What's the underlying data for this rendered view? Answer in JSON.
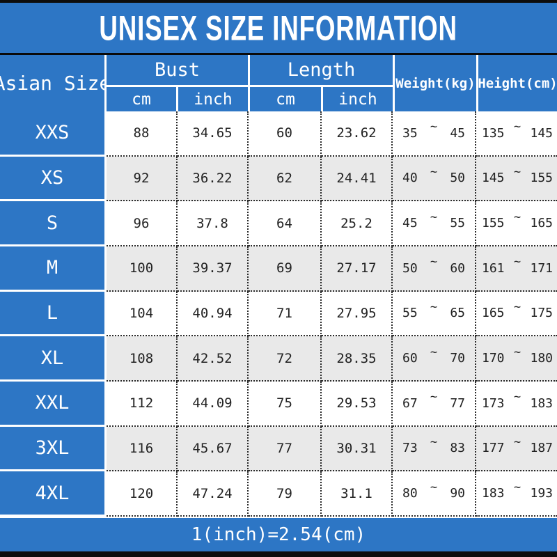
{
  "title": "UNISEX SIZE INFORMATION",
  "footer_note": "1(inch)=2.54(cm)",
  "tilde": "~",
  "colors": {
    "primary_blue": "#2d76c5",
    "alt_row_gray": "#e9e9e9",
    "cell_text": "#222222",
    "header_text": "#ffffff",
    "frame_bar_black": "#0d0d0d"
  },
  "table": {
    "headers": {
      "asian_size": "Asian Size",
      "bust": "Bust",
      "length": "Length",
      "cm": "cm",
      "inch": "inch",
      "weight": "Weight(kg)",
      "height": "Height(cm)"
    },
    "rows": [
      {
        "size": "XXS",
        "bust_cm": "88",
        "bust_inch": "34.65",
        "length_cm": "60",
        "length_inch": "23.62",
        "weight_min": "35",
        "weight_max": "45",
        "height_min": "135",
        "height_max": "145"
      },
      {
        "size": "XS",
        "bust_cm": "92",
        "bust_inch": "36.22",
        "length_cm": "62",
        "length_inch": "24.41",
        "weight_min": "40",
        "weight_max": "50",
        "height_min": "145",
        "height_max": "155"
      },
      {
        "size": "S",
        "bust_cm": "96",
        "bust_inch": "37.8",
        "length_cm": "64",
        "length_inch": "25.2",
        "weight_min": "45",
        "weight_max": "55",
        "height_min": "155",
        "height_max": "165"
      },
      {
        "size": "M",
        "bust_cm": "100",
        "bust_inch": "39.37",
        "length_cm": "69",
        "length_inch": "27.17",
        "weight_min": "50",
        "weight_max": "60",
        "height_min": "161",
        "height_max": "171"
      },
      {
        "size": "L",
        "bust_cm": "104",
        "bust_inch": "40.94",
        "length_cm": "71",
        "length_inch": "27.95",
        "weight_min": "55",
        "weight_max": "65",
        "height_min": "165",
        "height_max": "175"
      },
      {
        "size": "XL",
        "bust_cm": "108",
        "bust_inch": "42.52",
        "length_cm": "72",
        "length_inch": "28.35",
        "weight_min": "60",
        "weight_max": "70",
        "height_min": "170",
        "height_max": "180"
      },
      {
        "size": "XXL",
        "bust_cm": "112",
        "bust_inch": "44.09",
        "length_cm": "75",
        "length_inch": "29.53",
        "weight_min": "67",
        "weight_max": "77",
        "height_min": "173",
        "height_max": "183"
      },
      {
        "size": "3XL",
        "bust_cm": "116",
        "bust_inch": "45.67",
        "length_cm": "77",
        "length_inch": "30.31",
        "weight_min": "73",
        "weight_max": "83",
        "height_min": "177",
        "height_max": "187"
      },
      {
        "size": "4XL",
        "bust_cm": "120",
        "bust_inch": "47.24",
        "length_cm": "79",
        "length_inch": "31.1",
        "weight_min": "80",
        "weight_max": "90",
        "height_min": "183",
        "height_max": "193"
      }
    ]
  },
  "chart_data": {
    "type": "table",
    "title": "UNISEX SIZE INFORMATION",
    "columns": [
      "Asian Size",
      "Bust cm",
      "Bust inch",
      "Length cm",
      "Length inch",
      "Weight(kg)",
      "Height(cm)"
    ],
    "rows": [
      [
        "XXS",
        88,
        34.65,
        60,
        23.62,
        "35~45",
        "135~145"
      ],
      [
        "XS",
        92,
        36.22,
        62,
        24.41,
        "40~50",
        "145~155"
      ],
      [
        "S",
        96,
        37.8,
        64,
        25.2,
        "45~55",
        "155~165"
      ],
      [
        "M",
        100,
        39.37,
        69,
        27.17,
        "50~60",
        "161~171"
      ],
      [
        "L",
        104,
        40.94,
        71,
        27.95,
        "55~65",
        "165~175"
      ],
      [
        "XL",
        108,
        42.52,
        72,
        28.35,
        "60~70",
        "170~180"
      ],
      [
        "XXL",
        112,
        44.09,
        75,
        29.53,
        "67~77",
        "173~183"
      ],
      [
        "3XL",
        116,
        45.67,
        77,
        30.31,
        "73~83",
        "177~187"
      ],
      [
        "4XL",
        120,
        47.24,
        79,
        31.1,
        "80~90",
        "183~193"
      ]
    ],
    "footnote": "1(inch)=2.54(cm)"
  }
}
